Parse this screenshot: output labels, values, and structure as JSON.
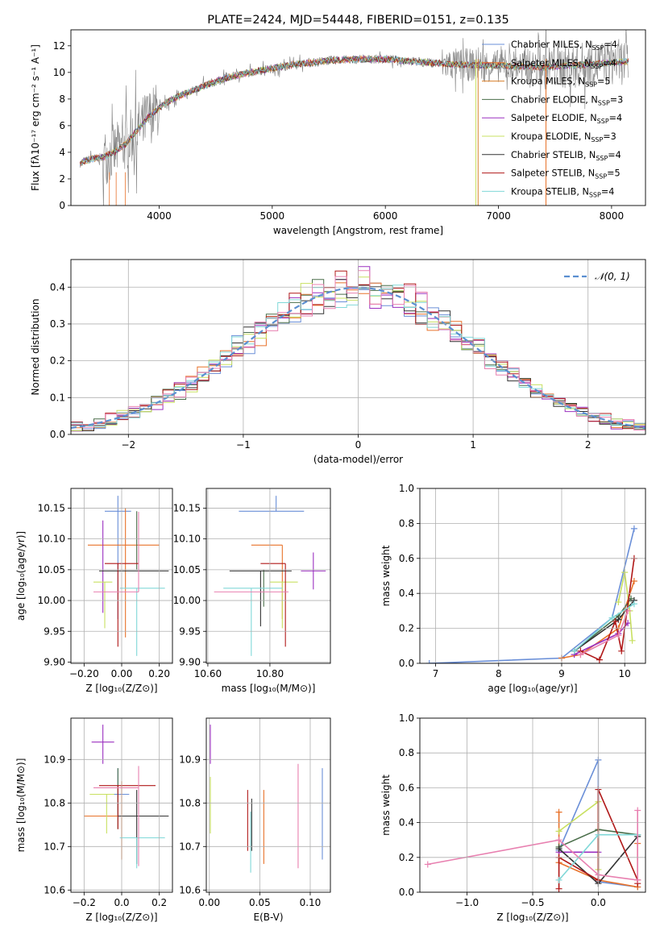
{
  "colors": {
    "chabrier_miles": "#6a8fd8",
    "salpeter_miles": "#e8722a",
    "kroupa_miles": "#d8812c",
    "chabrier_elodie": "#4a6e4a",
    "salpeter_elodie": "#9b30c0",
    "kroupa_elodie": "#c8e060",
    "chabrier_stelib": "#333333",
    "salpeter_stelib": "#b01818",
    "kroupa_stelib": "#80d8d8",
    "pink": "#e880b0",
    "grey": "#808080",
    "normal": "#5b8fd0"
  },
  "chart_data": [
    {
      "id": "spectrum",
      "type": "line",
      "title": "PLATE=2424, MJD=54448, FIBERID=0151, z=0.135",
      "xlabel": "wavelength [Angstrom, rest frame]",
      "ylabel": "Flux [fλ10⁻¹⁷ erg cm⁻² s⁻¹ A⁻¹]",
      "xlim": [
        3220,
        8300
      ],
      "ylim": [
        0,
        13.2
      ],
      "xticks": [
        4000,
        5000,
        6000,
        7000,
        8000
      ],
      "yticks": [
        0,
        2,
        4,
        6,
        8,
        10,
        12
      ],
      "grid": false,
      "legend_position": "right",
      "continuum": {
        "x": [
          3300,
          3400,
          3500,
          3600,
          3700,
          3800,
          3900,
          4000,
          4100,
          4200,
          4400,
          4600,
          4800,
          5000,
          5200,
          5500,
          5800,
          6000,
          6300,
          6600,
          7000,
          7400,
          7800,
          8100
        ],
        "y": [
          3.2,
          3.5,
          3.6,
          4.0,
          4.6,
          5.6,
          6.6,
          7.3,
          7.9,
          8.3,
          9.0,
          9.6,
          10.0,
          10.3,
          10.6,
          10.9,
          11.0,
          11.0,
          10.8,
          10.6,
          10.5,
          10.4,
          10.6,
          10.8
        ]
      },
      "legend": [
        {
          "label": "Chabrier MILES, N",
          "sub": "SSP",
          "value": "=4",
          "color": "chabrier_miles"
        },
        {
          "label": "Salpeter MILES, N",
          "sub": "SSP",
          "value": "=4",
          "color": "salpeter_miles"
        },
        {
          "label": "Kroupa MILES, N",
          "sub": "SSP",
          "value": "=5",
          "color": "kroupa_miles"
        },
        {
          "label": "Chabrier ELODIE, N",
          "sub": "SSP",
          "value": "=3",
          "color": "chabrier_elodie"
        },
        {
          "label": "Salpeter ELODIE, N",
          "sub": "SSP",
          "value": "=4",
          "color": "salpeter_elodie"
        },
        {
          "label": "Kroupa ELODIE, N",
          "sub": "SSP",
          "value": "=3",
          "color": "kroupa_elodie"
        },
        {
          "label": "Chabrier STELIB, N",
          "sub": "SSP",
          "value": "=4",
          "color": "chabrier_stelib"
        },
        {
          "label": "Salpeter STELIB, N",
          "sub": "SSP",
          "value": "=5",
          "color": "salpeter_stelib"
        },
        {
          "label": "Kroupa STELIB, N",
          "sub": "SSP",
          "value": "=4",
          "color": "kroupa_stelib"
        }
      ]
    },
    {
      "id": "residuals",
      "type": "histogram",
      "xlabel": "(data-model)/error",
      "ylabel": "Normed distribution",
      "xlim": [
        -2.5,
        2.5
      ],
      "ylim": [
        0,
        0.475
      ],
      "xticks": [
        -2,
        -1,
        0,
        1,
        2
      ],
      "yticks": [
        0.0,
        0.1,
        0.2,
        0.3,
        0.4
      ],
      "grid": true,
      "legend": [
        {
          "label": "𝒩(0, 1)",
          "color": "normal",
          "style": "dashed"
        }
      ],
      "legend_position": "top-right",
      "bin_width": 0.1,
      "series_colors": [
        "chabrier_miles",
        "salpeter_miles",
        "chabrier_elodie",
        "salpeter_elodie",
        "kroupa_elodie",
        "chabrier_stelib",
        "salpeter_stelib",
        "kroupa_stelib",
        "pink"
      ]
    },
    {
      "id": "age_vs_z",
      "type": "errorbar",
      "xlabel": "Z [log₁₀(Z/Z⊙)]",
      "ylabel": "age  [log₁₀(age/yr)]",
      "xlim": [
        -0.27,
        0.27
      ],
      "ylim": [
        9.898,
        10.182
      ],
      "xticks": [
        -0.2,
        0.0,
        0.2
      ],
      "yticks": [
        9.9,
        9.95,
        10.0,
        10.05,
        10.1,
        10.15
      ],
      "grid": true,
      "points": [
        {
          "x": -0.02,
          "y": 10.145,
          "xerr": 0.07,
          "yerr": [
            0.175,
            0.025
          ],
          "color": "chabrier_miles"
        },
        {
          "x": 0.02,
          "y": 10.09,
          "xerr": [
            0.2,
            0.18
          ],
          "yerr": [
            0.15,
            0.06
          ],
          "color": "salpeter_miles"
        },
        {
          "x": 0.08,
          "y": 10.12,
          "xerr": 0.0,
          "yerr": [
            0.07,
            0.025
          ],
          "color": "chabrier_elodie"
        },
        {
          "x": -0.1,
          "y": 10.1,
          "xerr": 0.0,
          "yerr": [
            0.12,
            0.03
          ],
          "color": "salpeter_elodie"
        },
        {
          "x": -0.09,
          "y": 10.03,
          "xerr": [
            0.06,
            0.04
          ],
          "yerr": [
            0.075,
            0.0
          ],
          "color": "kroupa_elodie"
        },
        {
          "x": 0.1,
          "y": 10.048,
          "xerr": [
            0.22,
            0.15
          ],
          "yerr": 0.0,
          "color": "chabrier_stelib"
        },
        {
          "x": -0.02,
          "y": 10.06,
          "xerr": [
            0.07,
            0.11
          ],
          "yerr": [
            0.135,
            0.0
          ],
          "color": "salpeter_stelib"
        },
        {
          "x": 0.08,
          "y": 10.02,
          "xerr": [
            0.09,
            0.15
          ],
          "yerr": [
            0.11,
            0.0
          ],
          "color": "kroupa_stelib"
        },
        {
          "x": 0.09,
          "y": 10.014,
          "xerr": [
            0.24,
            0.0
          ],
          "yerr": [
            0.0,
            0.13
          ],
          "color": "pink"
        }
      ]
    },
    {
      "id": "age_vs_mass",
      "type": "errorbar",
      "xlabel": "mass [log₁₀(M/M⊙)]",
      "ylabel": "",
      "xlim": [
        10.595,
        10.995
      ],
      "ylim": [
        9.898,
        10.182
      ],
      "xticks": [
        10.6,
        10.8
      ],
      "yticks": [
        9.9,
        9.95,
        10.0,
        10.05,
        10.1,
        10.15
      ],
      "grid": true,
      "points": [
        {
          "x": 10.82,
          "y": 10.145,
          "xerr": [
            0.12,
            0.09
          ],
          "yerr": [
            0.0,
            0.025
          ],
          "color": "chabrier_miles"
        },
        {
          "x": 10.84,
          "y": 10.09,
          "xerr": [
            0.1,
            0.0
          ],
          "yerr": [
            0.12,
            0.0
          ],
          "color": "salpeter_miles"
        },
        {
          "x": 10.78,
          "y": 10.05,
          "xerr": 0.0,
          "yerr": [
            0.06,
            0.0
          ],
          "color": "chabrier_elodie"
        },
        {
          "x": 10.94,
          "y": 10.048,
          "xerr": [
            0.04,
            0.04
          ],
          "yerr": [
            0.03,
            0.03
          ],
          "color": "salpeter_elodie"
        },
        {
          "x": 10.84,
          "y": 10.03,
          "xerr": [
            0.04,
            0.05
          ],
          "yerr": [
            0.075,
            0.0
          ],
          "color": "kroupa_elodie"
        },
        {
          "x": 10.77,
          "y": 10.048,
          "xerr": [
            0.1,
            0.1
          ],
          "yerr": [
            0.09,
            0.0
          ],
          "color": "chabrier_stelib"
        },
        {
          "x": 10.85,
          "y": 10.06,
          "xerr": [
            0.08,
            0.0
          ],
          "yerr": [
            0.135,
            0.0
          ],
          "color": "salpeter_stelib"
        },
        {
          "x": 10.74,
          "y": 10.02,
          "xerr": [
            0.09,
            0.1
          ],
          "yerr": [
            0.11,
            0.0
          ],
          "color": "kroupa_stelib"
        },
        {
          "x": 10.82,
          "y": 10.014,
          "xerr": [
            0.2,
            0.04
          ],
          "yerr": [
            0.0,
            0.0
          ],
          "color": "pink"
        }
      ]
    },
    {
      "id": "weight_vs_age",
      "type": "line",
      "xlabel": "age  [log₁₀(age/yr)]",
      "ylabel": "mass weight",
      "xlim": [
        6.75,
        10.33
      ],
      "ylim": [
        0,
        1.0
      ],
      "xticks": [
        7,
        8,
        9,
        10
      ],
      "yticks": [
        0.0,
        0.2,
        0.4,
        0.6,
        0.8,
        1.0
      ],
      "grid": true,
      "series": [
        {
          "color": "chabrier_miles",
          "x": [
            6.9,
            9.0,
            9.8,
            10.15
          ],
          "y": [
            0.0,
            0.03,
            0.26,
            0.77
          ]
        },
        {
          "color": "salpeter_miles",
          "x": [
            9.0,
            9.3,
            9.9,
            10.15
          ],
          "y": [
            0.03,
            0.05,
            0.2,
            0.47
          ]
        },
        {
          "color": "chabrier_elodie",
          "x": [
            9.2,
            9.9,
            10.1
          ],
          "y": [
            0.07,
            0.27,
            0.37
          ]
        },
        {
          "color": "salpeter_elodie",
          "x": [
            9.2,
            9.9,
            10.05
          ],
          "y": [
            0.05,
            0.17,
            0.23
          ]
        },
        {
          "color": "kroupa_elodie",
          "x": [
            9.9,
            10.0,
            10.08,
            10.12
          ],
          "y": [
            0.35,
            0.52,
            0.3,
            0.13
          ]
        },
        {
          "color": "chabrier_stelib",
          "x": [
            9.2,
            9.9,
            10.15
          ],
          "y": [
            0.07,
            0.25,
            0.36
          ]
        },
        {
          "color": "salpeter_stelib",
          "x": [
            9.3,
            9.6,
            9.85,
            9.95,
            10.15
          ],
          "y": [
            0.07,
            0.02,
            0.24,
            0.07,
            0.6
          ]
        },
        {
          "color": "kroupa_stelib",
          "x": [
            9.2,
            9.8,
            10.15
          ],
          "y": [
            0.07,
            0.26,
            0.34
          ]
        },
        {
          "color": "pink",
          "x": [
            9.3,
            9.9,
            10.05
          ],
          "y": [
            0.05,
            0.16,
            0.3
          ]
        }
      ]
    },
    {
      "id": "mass_vs_z",
      "type": "errorbar",
      "xlabel": "Z [log₁₀(Z/Z⊙)]",
      "ylabel": "mass [log₁₀(M/M⊙)]",
      "xlim": [
        -0.27,
        0.27
      ],
      "ylim": [
        10.595,
        10.995
      ],
      "xticks": [
        -0.2,
        0.0,
        0.2
      ],
      "yticks": [
        10.6,
        10.7,
        10.8,
        10.9
      ],
      "grid": true,
      "points": [
        {
          "x": -0.02,
          "y": 10.82,
          "xerr": [
            0.05,
            0.06
          ],
          "yerr": [
            0.05,
            0.06
          ],
          "color": "chabrier_miles"
        },
        {
          "x": 0.0,
          "y": 10.77,
          "xerr": [
            0.2,
            0.18
          ],
          "yerr": [
            0.1,
            0.08
          ],
          "color": "salpeter_miles"
        },
        {
          "x": -0.02,
          "y": 10.84,
          "xerr": 0.0,
          "yerr": [
            0.1,
            0.04
          ],
          "color": "chabrier_elodie"
        },
        {
          "x": -0.1,
          "y": 10.94,
          "xerr": 0.06,
          "yerr": [
            0.05,
            0.04
          ],
          "color": "salpeter_elodie"
        },
        {
          "x": -0.08,
          "y": 10.82,
          "xerr": [
            0.09,
            0.04
          ],
          "yerr": [
            0.09,
            0.0
          ],
          "color": "kroupa_elodie"
        },
        {
          "x": 0.08,
          "y": 10.77,
          "xerr": [
            0.1,
            0.17
          ],
          "yerr": [
            0.11,
            0.06
          ],
          "color": "chabrier_stelib"
        },
        {
          "x": -0.02,
          "y": 10.84,
          "xerr": [
            0.1,
            0.2
          ],
          "yerr": [
            0.1,
            0.0
          ],
          "color": "salpeter_stelib"
        },
        {
          "x": 0.08,
          "y": 10.72,
          "xerr": [
            0.09,
            0.15
          ],
          "yerr": [
            0.07,
            0.0
          ],
          "color": "kroupa_stelib"
        },
        {
          "x": 0.09,
          "y": 10.835,
          "xerr": [
            0.24,
            0.0
          ],
          "yerr": [
            0.18,
            0.05
          ],
          "color": "pink"
        }
      ]
    },
    {
      "id": "mass_vs_ebv",
      "type": "errorbar",
      "xlabel": "E(B-V)",
      "ylabel": "",
      "xlim": [
        -0.003,
        0.12
      ],
      "ylim": [
        10.595,
        10.995
      ],
      "xticks": [
        0.0,
        0.05,
        0.1
      ],
      "yticks": [
        10.6,
        10.7,
        10.8,
        10.9
      ],
      "grid": true,
      "points": [
        {
          "x": 0.001,
          "y": 10.94,
          "xerr": 0.0,
          "yerr": [
            0.05,
            0.04
          ],
          "color": "salpeter_elodie"
        },
        {
          "x": 0.001,
          "y": 10.8,
          "xerr": 0.0,
          "yerr": [
            0.07,
            0.06
          ],
          "color": "kroupa_elodie"
        },
        {
          "x": 0.038,
          "y": 10.77,
          "xerr": 0.0,
          "yerr": [
            0.08,
            0.06
          ],
          "color": "salpeter_stelib"
        },
        {
          "x": 0.041,
          "y": 10.74,
          "xerr": 0.0,
          "yerr": [
            0.1,
            0.04
          ],
          "color": "kroupa_stelib"
        },
        {
          "x": 0.042,
          "y": 10.77,
          "xerr": 0.0,
          "yerr": [
            0.08,
            0.04
          ],
          "color": "chabrier_stelib"
        },
        {
          "x": 0.054,
          "y": 10.76,
          "xerr": 0.0,
          "yerr": [
            0.1,
            0.07
          ],
          "color": "salpeter_miles"
        },
        {
          "x": 0.088,
          "y": 10.76,
          "xerr": 0.0,
          "yerr": [
            0.11,
            0.13
          ],
          "color": "pink"
        },
        {
          "x": 0.112,
          "y": 10.78,
          "xerr": 0.0,
          "yerr": [
            0.11,
            0.1
          ],
          "color": "chabrier_miles"
        }
      ]
    },
    {
      "id": "weight_vs_z",
      "type": "line",
      "xlabel": "Z [log₁₀(Z/Z⊙)]",
      "ylabel": "mass weight",
      "xlim": [
        -1.36,
        0.36
      ],
      "ylim": [
        0,
        1.0
      ],
      "xticks": [
        -1.0,
        -0.5,
        0.0
      ],
      "yticks": [
        0.0,
        0.2,
        0.4,
        0.6,
        0.8,
        1.0
      ],
      "grid": true,
      "series": [
        {
          "color": "chabrier_miles",
          "x": [
            -0.3,
            0.0,
            0.0,
            0.3
          ],
          "y": [
            0.24,
            0.76,
            0.06,
            0.03
          ]
        },
        {
          "color": "salpeter_miles",
          "x": [
            -0.3,
            -0.3,
            0.0,
            0.3,
            0.3
          ],
          "y": [
            0.46,
            0.17,
            0.07,
            0.03,
            0.28
          ]
        },
        {
          "color": "chabrier_elodie",
          "x": [
            -0.3,
            0.0,
            0.3
          ],
          "y": [
            0.26,
            0.36,
            0.33
          ]
        },
        {
          "color": "salpeter_elodie",
          "x": [
            -0.3,
            0.0
          ],
          "y": [
            0.23,
            0.23
          ]
        },
        {
          "color": "kroupa_elodie",
          "x": [
            -0.3,
            0.0,
            0.0
          ],
          "y": [
            0.35,
            0.52,
            0.13
          ]
        },
        {
          "color": "chabrier_stelib",
          "x": [
            -0.3,
            0.0,
            0.3
          ],
          "y": [
            0.25,
            0.05,
            0.32
          ]
        },
        {
          "color": "salpeter_stelib",
          "x": [
            -0.3,
            -0.3,
            0.0,
            0.0,
            0.3,
            0.3
          ],
          "y": [
            0.02,
            0.2,
            0.07,
            0.59,
            0.07,
            0.05
          ]
        },
        {
          "color": "kroupa_stelib",
          "x": [
            -0.3,
            0.0,
            0.3
          ],
          "y": [
            0.07,
            0.33,
            0.33
          ]
        },
        {
          "color": "pink",
          "x": [
            -1.3,
            -0.3,
            0.0,
            0.3,
            0.3
          ],
          "y": [
            0.16,
            0.3,
            0.1,
            0.07,
            0.47
          ]
        }
      ]
    }
  ]
}
